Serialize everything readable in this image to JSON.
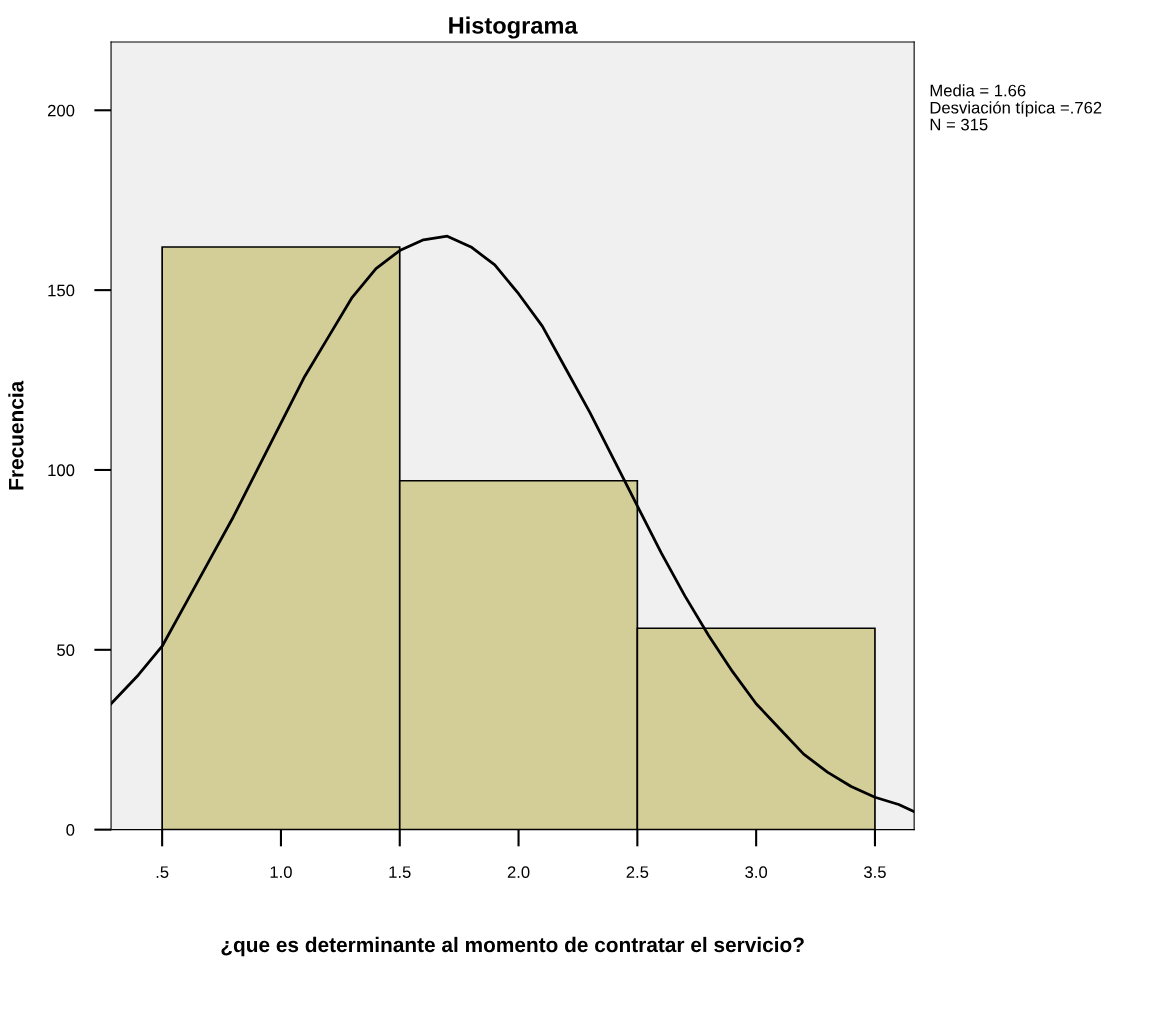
{
  "chart_data": {
    "type": "histogram",
    "title": "Histograma",
    "xlabel": "¿que es determinante al momento de contratar el servicio?",
    "ylabel": "Frecuencia",
    "bins": [
      0.5,
      1.5,
      2.5,
      3.5
    ],
    "values": [
      162,
      97,
      56
    ],
    "color": "#d3ce98",
    "series": [
      {
        "type": "line",
        "color": "#000000",
        "x": [
          0.285,
          0.4,
          0.5,
          0.6,
          0.7,
          0.8,
          0.9,
          1.0,
          1.1,
          1.2,
          1.3,
          1.4,
          1.5,
          1.6,
          1.7,
          1.8,
          1.9,
          2.0,
          2.1,
          2.2,
          2.3,
          2.4,
          2.5,
          2.6,
          2.7,
          2.8,
          2.9,
          3.0,
          3.1,
          3.2,
          3.3,
          3.4,
          3.5,
          3.6,
          3.665
        ],
        "values": [
          35,
          43,
          51,
          63,
          75,
          87,
          100,
          113,
          126,
          137,
          148,
          156,
          161,
          164,
          165,
          162,
          157,
          149,
          140,
          128,
          116,
          103,
          90,
          77,
          65,
          54,
          44,
          35,
          28,
          21,
          16,
          12,
          9,
          7,
          5
        ]
      }
    ],
    "xlim": [
      0.285,
      3.665
    ],
    "ylim": [
      0,
      219
    ],
    "xticks": [
      {
        "value": 0.5,
        "label": ".5"
      },
      {
        "value": 1.0,
        "label": "1.0"
      },
      {
        "value": 1.5,
        "label": "1.5"
      },
      {
        "value": 2.0,
        "label": "2.0"
      },
      {
        "value": 2.5,
        "label": "2.5"
      },
      {
        "value": 3.0,
        "label": "3.0"
      },
      {
        "value": 3.5,
        "label": "3.5"
      }
    ],
    "yticks": [
      0,
      50,
      100,
      150,
      200
    ],
    "annotations": [
      "Media = 1.66",
      "Desviación típica =.762",
      "N = 315"
    ]
  }
}
